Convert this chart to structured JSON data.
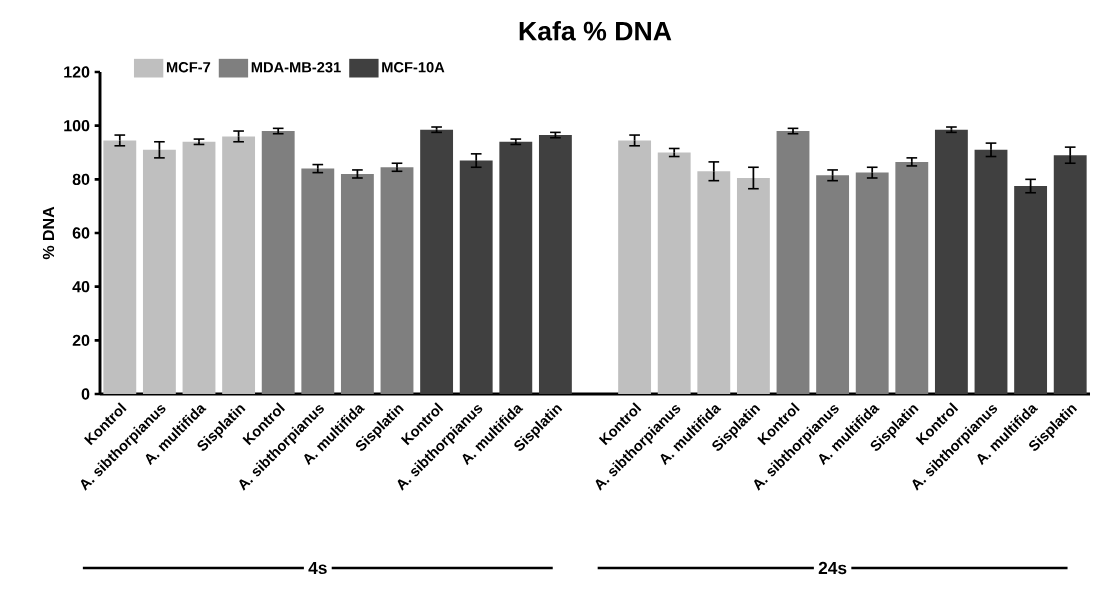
{
  "chart_data": {
    "type": "bar",
    "title": "Kafa % DNA",
    "ylabel": "% DNA",
    "categories": [
      "Kontrol",
      "A. sibthorpianus",
      "A. multifida",
      "Sisplatin",
      "Kontrol",
      "A. sibthorpianus",
      "A. multifida",
      "Sisplatin",
      "Kontrol",
      "A. sibthorpianus",
      "A. multifida",
      "Sisplatin",
      null,
      "Kontrol",
      "A. sibthorpianus",
      "A. multifida",
      "Sisplatin",
      "Kontrol",
      "A. sibthorpianus",
      "A. multifida",
      "Sisplatin",
      "Kontrol",
      "A. sibthorpianus",
      "A. multifida",
      "Sisplatin"
    ],
    "series": [
      {
        "name": "MCF-7",
        "color": "#bfbfbf",
        "values": [
          94.5,
          91,
          94,
          96,
          null,
          null,
          null,
          null,
          null,
          null,
          null,
          null,
          null,
          94.5,
          90,
          83,
          80.5,
          null,
          null,
          null,
          null,
          null,
          null,
          null,
          null
        ],
        "errors": [
          2,
          3,
          1,
          2,
          null,
          null,
          null,
          null,
          null,
          null,
          null,
          null,
          null,
          2,
          1.5,
          3.5,
          4,
          null,
          null,
          null,
          null,
          null,
          null,
          null,
          null
        ]
      },
      {
        "name": "MDA-MB-231",
        "color": "#7f7f7f",
        "values": [
          null,
          null,
          null,
          null,
          98,
          84,
          82,
          84.5,
          null,
          null,
          null,
          null,
          null,
          null,
          null,
          null,
          null,
          98,
          81.5,
          82.5,
          86.5,
          null,
          null,
          null,
          null
        ],
        "errors": [
          null,
          null,
          null,
          null,
          1,
          1.5,
          1.5,
          1.5,
          null,
          null,
          null,
          null,
          null,
          null,
          null,
          null,
          null,
          1,
          2,
          2,
          1.5,
          null,
          null,
          null,
          null
        ]
      },
      {
        "name": "MCF-10A",
        "color": "#404040",
        "values": [
          null,
          null,
          null,
          null,
          null,
          null,
          null,
          null,
          98.5,
          87,
          94,
          96.5,
          null,
          null,
          null,
          null,
          null,
          null,
          null,
          null,
          null,
          98.5,
          91,
          77.5,
          89
        ],
        "errors": [
          null,
          null,
          null,
          null,
          null,
          null,
          null,
          null,
          1,
          2.5,
          1,
          1,
          null,
          null,
          null,
          null,
          null,
          null,
          null,
          null,
          null,
          1,
          2.5,
          2.5,
          3
        ]
      }
    ],
    "ylim": [
      0,
      120
    ],
    "yticks": [
      0,
      20,
      40,
      60,
      80,
      100,
      120
    ],
    "legend": "top left",
    "annotations": [
      "4s",
      "24s"
    ]
  }
}
